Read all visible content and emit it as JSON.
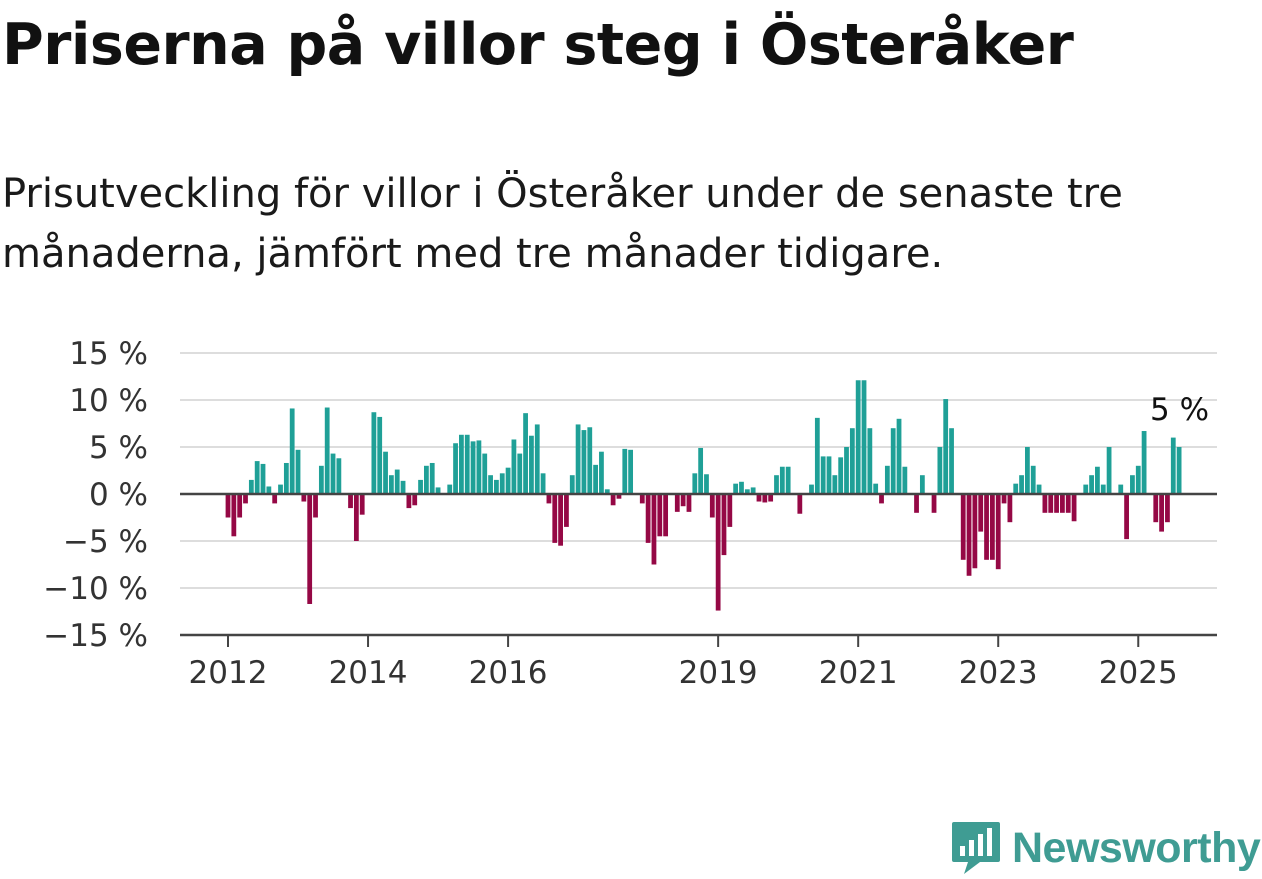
{
  "title": "Priserna på villor steg i Österåker",
  "subtitle": "Prisutveckling för villor i Österåker under de senaste tre månaderna, jämfört med tre månader tidigare.",
  "brand": {
    "name": "Newsworthy",
    "color": "#3f9c93"
  },
  "chart_data": {
    "type": "bar",
    "unit": "%",
    "ylim": [
      -15,
      15
    ],
    "y_ticks": [
      15,
      10,
      5,
      0,
      -5,
      -10,
      -15
    ],
    "y_tick_labels": [
      "15 %",
      "10 %",
      "5 %",
      "0 %",
      "−5 %",
      "−10 %",
      "−15 %"
    ],
    "x_tick_labels": [
      {
        "label": "2012",
        "month_index": 0
      },
      {
        "label": "2014",
        "month_index": 24
      },
      {
        "label": "2016",
        "month_index": 48
      },
      {
        "label": "2019",
        "month_index": 84
      },
      {
        "label": "2021",
        "month_index": 108
      },
      {
        "label": "2023",
        "month_index": 132
      },
      {
        "label": "2025",
        "month_index": 156
      }
    ],
    "first_month": "2012-01",
    "last_value_label": "5 %",
    "grid": true,
    "colors": {
      "positive": "#1fa097",
      "negative": "#950845"
    },
    "values": [
      -2.5,
      -4.5,
      -2.5,
      -1,
      1.5,
      3.5,
      3.2,
      0.8,
      -1,
      1,
      3.3,
      9.1,
      4.7,
      -0.8,
      -11.7,
      -2.5,
      3,
      9.2,
      4.3,
      3.8,
      null,
      -1.5,
      -5,
      -2.2,
      null,
      8.7,
      8.2,
      4.5,
      2,
      2.6,
      1.4,
      -1.5,
      -1.2,
      1.5,
      3,
      3.3,
      0.7,
      null,
      1,
      5.4,
      6.3,
      6.3,
      5.6,
      5.7,
      4.3,
      2,
      1.5,
      2.2,
      2.8,
      5.8,
      4.3,
      8.6,
      6.2,
      7.4,
      2.2,
      -1,
      -5.2,
      -5.5,
      -3.5,
      2,
      7.4,
      6.8,
      7.1,
      3.1,
      4.5,
      0.5,
      -1.2,
      -0.5,
      4.8,
      4.7,
      null,
      -1,
      -5.2,
      -7.5,
      -4.5,
      -4.5,
      null,
      -1.9,
      -1.3,
      -1.9,
      2.2,
      4.9,
      2.1,
      -2.5,
      -12.4,
      -6.5,
      -3.5,
      1.1,
      1.3,
      0.5,
      0.7,
      -0.8,
      -0.9,
      -0.8,
      2,
      2.9,
      2.9,
      null,
      -2.1,
      null,
      1,
      8.1,
      4,
      4,
      2,
      3.9,
      5,
      7,
      12.1,
      12.1,
      7,
      1.1,
      -1,
      3,
      7,
      8,
      2.9,
      null,
      -2,
      2,
      null,
      -2,
      5,
      10.1,
      7,
      null,
      -7,
      -8.7,
      -7.9,
      -4,
      -7,
      -7,
      -8,
      -1,
      -3,
      1.1,
      2,
      5,
      3,
      1,
      -2,
      -2,
      -2,
      -2,
      -2,
      -2.9,
      null,
      1,
      2,
      2.9,
      1,
      5,
      null,
      1,
      -4.8,
      2,
      3,
      6.7,
      null,
      -3,
      -4,
      -3,
      6,
      5
    ]
  }
}
